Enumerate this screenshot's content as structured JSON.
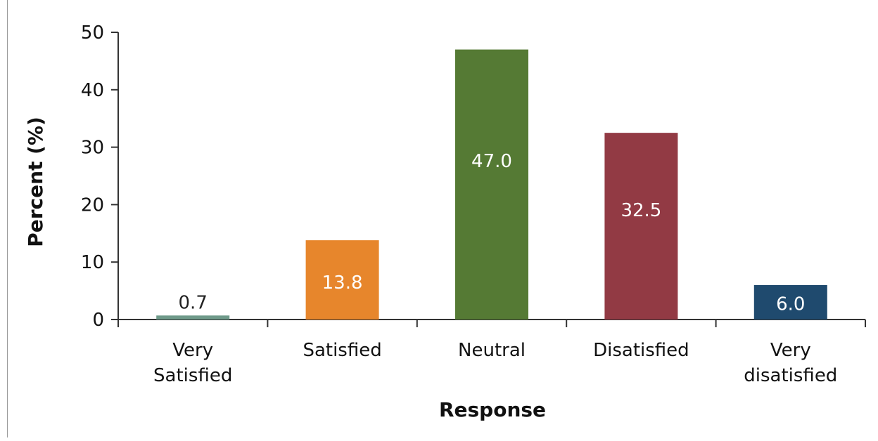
{
  "chart_data": {
    "type": "bar",
    "title": "",
    "xlabel": "Response",
    "ylabel": "Percent (%)",
    "ylim": [
      0,
      50
    ],
    "yticks": [
      0,
      10,
      20,
      30,
      40,
      50
    ],
    "grid": false,
    "legend": "none",
    "categories": [
      [
        "Very",
        "Satisfied"
      ],
      [
        "Satisfied"
      ],
      [
        "Neutral"
      ],
      [
        "Disatisfied"
      ],
      [
        "Very",
        "disatisfied"
      ]
    ],
    "values": [
      0.7,
      13.8,
      47.0,
      32.5,
      6.0
    ],
    "value_labels": [
      "0.7",
      "13.8",
      "47.0",
      "32.5",
      "6.0"
    ],
    "colors": [
      "#6f9a8a",
      "#e7862c",
      "#557a34",
      "#923a44",
      "#1f4a6e"
    ]
  }
}
